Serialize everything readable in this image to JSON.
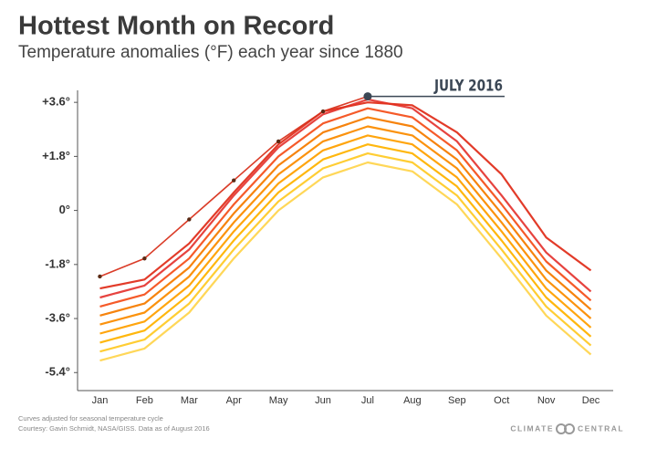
{
  "chart_data": {
    "type": "line",
    "title": "Hottest Month on Record",
    "subtitle": "Temperature anomalies (°F) each year since 1880",
    "annotation": "JULY 2016",
    "categories": [
      "Jan",
      "Feb",
      "Mar",
      "Apr",
      "May",
      "Jun",
      "Jul",
      "Aug",
      "Sep",
      "Oct",
      "Nov",
      "Dec"
    ],
    "series": [
      {
        "color": "#ffd54f",
        "values": [
          -5.0,
          -4.6,
          -3.4,
          -1.6,
          0.0,
          1.1,
          1.6,
          1.3,
          0.2,
          -1.6,
          -3.5,
          -4.8
        ]
      },
      {
        "color": "#ffca28",
        "values": [
          -4.7,
          -4.3,
          -3.1,
          -1.3,
          0.3,
          1.4,
          1.9,
          1.6,
          0.5,
          -1.3,
          -3.2,
          -4.5
        ]
      },
      {
        "color": "#ffb300",
        "values": [
          -4.4,
          -4.0,
          -2.8,
          -1.0,
          0.6,
          1.7,
          2.2,
          1.9,
          0.8,
          -1.0,
          -2.9,
          -4.2
        ]
      },
      {
        "color": "#ffa000",
        "values": [
          -4.1,
          -3.7,
          -2.5,
          -0.7,
          0.9,
          2.0,
          2.5,
          2.2,
          1.1,
          -0.7,
          -2.6,
          -3.9
        ]
      },
      {
        "color": "#fb8c00",
        "values": [
          -3.8,
          -3.4,
          -2.2,
          -0.4,
          1.2,
          2.3,
          2.8,
          2.5,
          1.4,
          -0.4,
          -2.3,
          -3.6
        ]
      },
      {
        "color": "#f57c00",
        "values": [
          -3.5,
          -3.1,
          -1.9,
          -0.1,
          1.5,
          2.6,
          3.1,
          2.8,
          1.7,
          -0.1,
          -2.0,
          -3.3
        ]
      },
      {
        "color": "#f4511e",
        "values": [
          -3.2,
          -2.8,
          -1.6,
          0.2,
          1.8,
          2.9,
          3.4,
          3.1,
          2.0,
          0.2,
          -1.7,
          -3.0
        ]
      },
      {
        "color": "#e53935",
        "values": [
          -2.9,
          -2.5,
          -1.3,
          0.5,
          2.1,
          3.2,
          3.7,
          3.4,
          2.3,
          0.5,
          -1.4,
          -2.7
        ]
      },
      {
        "color": "#e0301e",
        "values": [
          -2.6,
          -2.3,
          -1.1,
          0.6,
          2.2,
          3.3,
          3.6,
          3.5,
          2.6,
          1.2,
          -0.9,
          -2.0
        ]
      },
      {
        "color": "#d8321c",
        "markers": true,
        "values": [
          -2.2,
          -1.6,
          -0.3,
          1.0,
          2.3,
          3.3,
          3.8,
          null,
          null,
          null,
          null,
          null
        ]
      }
    ],
    "ylim": [
      -6,
      4
    ],
    "yticks": [
      {
        "value": 3.6,
        "label": "+3.6°"
      },
      {
        "value": 1.8,
        "label": "+1.8°"
      },
      {
        "value": 0,
        "label": "0°"
      },
      {
        "value": -1.8,
        "label": "-1.8°"
      },
      {
        "value": -3.6,
        "label": "-3.6°"
      },
      {
        "value": -5.4,
        "label": "-5.4°"
      }
    ],
    "notes": [
      "Curves adjusted for seasonal temperature cycle",
      "Courtesy: Gavin Schmidt, NASA/GISS. Data as of August 2016"
    ],
    "logo": [
      "CLIMATE",
      "CENTRAL"
    ]
  }
}
